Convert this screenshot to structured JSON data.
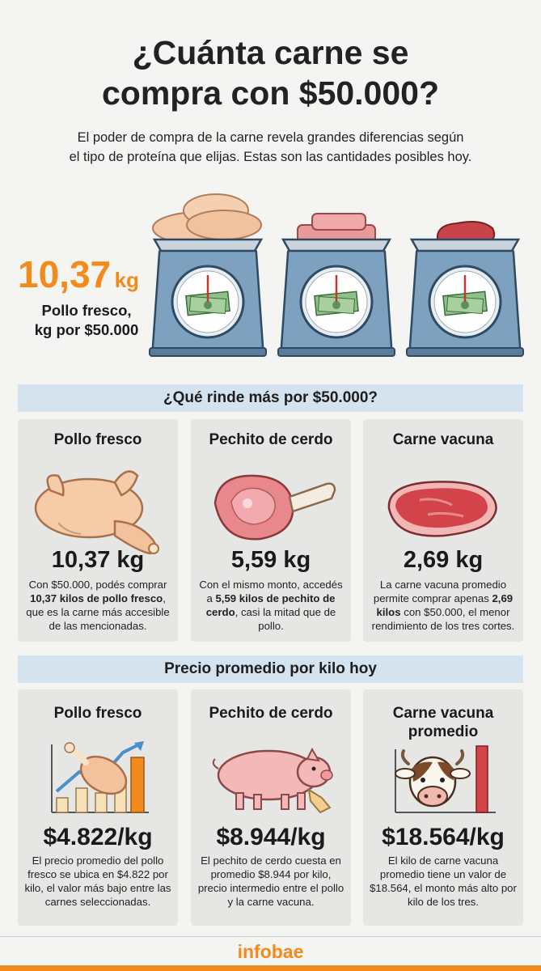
{
  "header": {
    "title_line1": "¿Cuánta carne se",
    "title_line2": "compra con $50.000?",
    "subtitle_line1": "El poder de compra de la carne revela grandes diferencias según",
    "subtitle_line2": "el tipo de proteína que elijas. Estas son las cantidades posibles hoy."
  },
  "hero": {
    "number": "10,37",
    "unit": "kg",
    "label_line1": "Pollo fresco,",
    "label_line2": "kg por $50.000"
  },
  "section1": {
    "title": "¿Qué rinde más por $50.000?",
    "cards": [
      {
        "title": "Pollo fresco",
        "value": "10,37 kg",
        "desc_a": "Con $50.000, podés comprar",
        "desc_bold": "10,37 kilos de pollo fresco",
        "desc_b": ", que es la carne más accesible de las mencionadas."
      },
      {
        "title": "Pechito de cerdo",
        "value": "5,59 kg",
        "desc_a": "Con el mismo monto, accedés a ",
        "desc_bold": "5,59 kilos de pechito de cerdo",
        "desc_b": ", casi la mitad que de pollo."
      },
      {
        "title": "Carne vacuna",
        "value": "2,69 kg",
        "desc_a": "La carne vacuna promedio permite comprar apenas ",
        "desc_bold": "2,69 kilos",
        "desc_b": " con $50.000, el menor rendimiento de los tres cortes."
      }
    ]
  },
  "section2": {
    "title": "Precio promedio por kilo hoy",
    "cards": [
      {
        "title": "Pollo fresco",
        "value": "$4.822/kg",
        "desc": "El precio promedio del pollo fresco se ubica en $4.822 por kilo, el valor más bajo entre las carnes seleccionadas."
      },
      {
        "title": "Pechito de cerdo",
        "value": "$8.944/kg",
        "desc": "El pechito de cerdo cuesta en promedio $8.944 por kilo, precio intermedio entre el pollo y la carne vacuna."
      },
      {
        "title_line1": "Carne vacuna",
        "title_line2": "promedio",
        "value": "$18.564/kg",
        "desc": "El kilo de carne vacuna promedio tiene un valor de $18.564, el monto más alto por kilo de los tres."
      }
    ]
  },
  "footer": {
    "brand": "infobae"
  },
  "colors": {
    "accent": "#f28a1c",
    "band": "#d4e3ee",
    "card": "#e6e6e4",
    "scale": "#6f93b4"
  },
  "icons": [
    "scale-chicken-icon",
    "scale-pork-icon",
    "scale-beef-icon",
    "chicken-icon",
    "pork-chop-icon",
    "steak-icon",
    "drumstick-chart-icon",
    "pig-icon",
    "cow-icon"
  ]
}
